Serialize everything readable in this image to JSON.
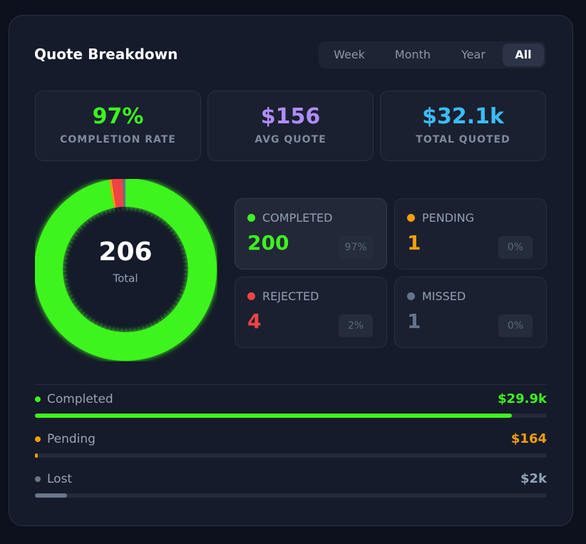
{
  "header": {
    "title": "Quote Breakdown",
    "tabs": [
      "Week",
      "Month",
      "Year",
      "All"
    ],
    "active_tab": 3
  },
  "summary": [
    {
      "value": "97%",
      "label": "COMPLETION RATE",
      "color": "#3df51f"
    },
    {
      "value": "$156",
      "label": "AVG QUOTE",
      "color": "#b18cff"
    },
    {
      "value": "$32.1k",
      "label": "TOTAL QUOTED",
      "color": "#3cbcf5"
    }
  ],
  "donut": {
    "total": 206,
    "total_label": "Total"
  },
  "statuses": [
    {
      "label": "COMPLETED",
      "count": 200,
      "percent": "97%",
      "color": "#3df51f"
    },
    {
      "label": "PENDING",
      "count": 1,
      "percent": "0%",
      "color": "#f59e0b"
    },
    {
      "label": "REJECTED",
      "count": 4,
      "percent": "2%",
      "color": "#ef4444"
    },
    {
      "label": "MISSED",
      "count": 1,
      "percent": "0%",
      "color": "#64748b"
    }
  ],
  "amounts": {
    "total": 32100,
    "rows": [
      {
        "label": "Completed",
        "value": 29900,
        "value_label": "$29.9k",
        "color": "#3df51f"
      },
      {
        "label": "Pending",
        "value": 164,
        "value_label": "$164",
        "color": "#f59e0b"
      },
      {
        "label": "Lost",
        "value": 2000,
        "value_label": "$2k",
        "color": "#6b7689",
        "text_color": "#94a3b8"
      }
    ]
  }
}
